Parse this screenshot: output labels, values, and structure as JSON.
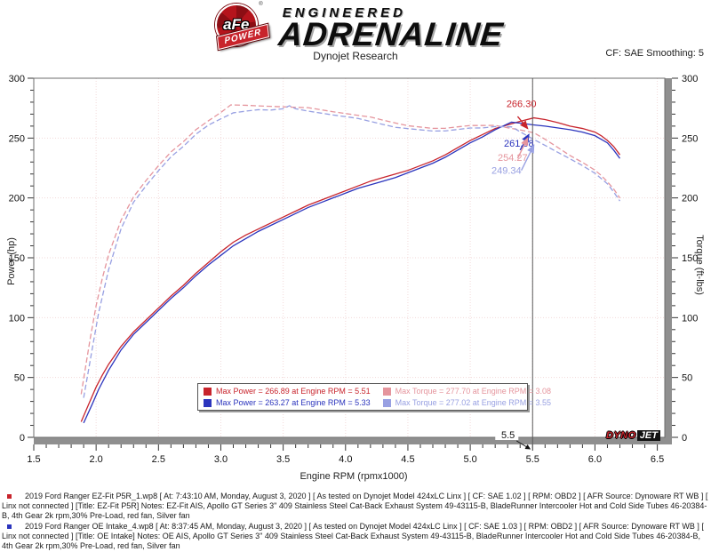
{
  "header": {
    "brand": {
      "afe": "aFe",
      "reg": "®",
      "power": "POWER",
      "line1": "ENGINEERED",
      "line2": "ADRENALINE"
    },
    "title": "Dynojet Research",
    "smoothing": "CF: SAE Smoothing: 5"
  },
  "chart_data": {
    "type": "line",
    "xlabel": "Engine RPM (rpmx1000)",
    "ylabel_left": "Power (hp)",
    "ylabel_right": "Torque (ft-lbs)",
    "xlim": [
      1.5,
      6.56
    ],
    "ylim": [
      0,
      300
    ],
    "x_major_ticks": [
      "1.5",
      "2.0",
      "2.5",
      "3.0",
      "3.5",
      "4.0",
      "4.5",
      "5.0",
      "5.5",
      "6.0",
      "6.5"
    ],
    "y_major_ticks": [
      "0",
      "50",
      "100",
      "150",
      "200",
      "250",
      "300"
    ],
    "x_minor_step": 0.1,
    "y_minor_step": 10,
    "grid": {
      "on": true,
      "color": "#f2dada",
      "style": "dotted"
    },
    "frame_color": "#8f8f8f",
    "cursor": {
      "x": 5.5,
      "label": "5.5",
      "color": "#5a5a5a"
    },
    "series": [
      {
        "id": "ezfit-power",
        "axis": "left",
        "color": "#c8242c",
        "dashed": false,
        "points": [
          [
            1.88,
            13
          ],
          [
            1.95,
            30
          ],
          [
            2.0,
            42
          ],
          [
            2.05,
            52
          ],
          [
            2.1,
            61
          ],
          [
            2.2,
            76
          ],
          [
            2.3,
            88
          ],
          [
            2.4,
            98
          ],
          [
            2.5,
            108
          ],
          [
            2.6,
            118
          ],
          [
            2.7,
            127
          ],
          [
            2.8,
            137
          ],
          [
            2.9,
            146
          ],
          [
            3.0,
            155
          ],
          [
            3.1,
            163
          ],
          [
            3.2,
            169
          ],
          [
            3.3,
            174
          ],
          [
            3.4,
            179
          ],
          [
            3.5,
            184
          ],
          [
            3.6,
            189
          ],
          [
            3.7,
            194
          ],
          [
            3.8,
            198
          ],
          [
            3.9,
            202
          ],
          [
            4.0,
            206
          ],
          [
            4.1,
            210
          ],
          [
            4.2,
            214
          ],
          [
            4.3,
            217
          ],
          [
            4.4,
            220
          ],
          [
            4.5,
            223
          ],
          [
            4.6,
            227
          ],
          [
            4.7,
            231
          ],
          [
            4.8,
            236
          ],
          [
            4.9,
            242
          ],
          [
            5.0,
            248
          ],
          [
            5.1,
            253
          ],
          [
            5.2,
            258
          ],
          [
            5.3,
            261
          ],
          [
            5.4,
            264
          ],
          [
            5.51,
            266.89
          ],
          [
            5.6,
            265.5
          ],
          [
            5.7,
            263
          ],
          [
            5.8,
            260
          ],
          [
            5.9,
            258
          ],
          [
            6.0,
            255
          ],
          [
            6.05,
            252
          ],
          [
            6.1,
            248
          ],
          [
            6.15,
            243
          ],
          [
            6.2,
            236
          ]
        ]
      },
      {
        "id": "oe-power",
        "axis": "left",
        "color": "#2b34bd",
        "dashed": false,
        "points": [
          [
            1.9,
            12
          ],
          [
            1.97,
            28
          ],
          [
            2.02,
            40
          ],
          [
            2.1,
            56
          ],
          [
            2.2,
            73
          ],
          [
            2.3,
            86
          ],
          [
            2.4,
            96
          ],
          [
            2.5,
            106
          ],
          [
            2.6,
            116
          ],
          [
            2.7,
            125
          ],
          [
            2.8,
            135
          ],
          [
            2.9,
            144
          ],
          [
            3.0,
            152
          ],
          [
            3.1,
            160
          ],
          [
            3.2,
            166
          ],
          [
            3.3,
            172
          ],
          [
            3.4,
            177
          ],
          [
            3.5,
            182
          ],
          [
            3.6,
            187
          ],
          [
            3.7,
            192
          ],
          [
            3.8,
            196
          ],
          [
            3.9,
            200
          ],
          [
            4.0,
            204
          ],
          [
            4.1,
            208
          ],
          [
            4.2,
            211
          ],
          [
            4.3,
            214
          ],
          [
            4.4,
            217
          ],
          [
            4.5,
            221
          ],
          [
            4.6,
            225
          ],
          [
            4.7,
            229
          ],
          [
            4.8,
            234
          ],
          [
            4.9,
            240
          ],
          [
            5.0,
            246
          ],
          [
            5.1,
            251
          ],
          [
            5.2,
            257
          ],
          [
            5.33,
            263.27
          ],
          [
            5.4,
            262.5
          ],
          [
            5.5,
            261.08
          ],
          [
            5.6,
            260
          ],
          [
            5.7,
            258.5
          ],
          [
            5.8,
            257
          ],
          [
            5.9,
            255
          ],
          [
            6.0,
            252
          ],
          [
            6.1,
            246
          ],
          [
            6.15,
            240
          ],
          [
            6.2,
            233
          ]
        ]
      },
      {
        "id": "ezfit-torque",
        "axis": "right",
        "color": "#e5959d",
        "dashed": true,
        "points": [
          [
            1.88,
            36
          ],
          [
            1.95,
            81
          ],
          [
            2.0,
            110
          ],
          [
            2.05,
            133
          ],
          [
            2.1,
            152.6
          ],
          [
            2.2,
            181.4
          ],
          [
            2.3,
            200.9
          ],
          [
            2.4,
            214.5
          ],
          [
            2.5,
            226.9
          ],
          [
            2.6,
            238.4
          ],
          [
            2.7,
            247
          ],
          [
            2.8,
            257
          ],
          [
            2.9,
            264.4
          ],
          [
            3.0,
            271.4
          ],
          [
            3.08,
            277.7
          ],
          [
            3.2,
            277.4
          ],
          [
            3.3,
            276.9
          ],
          [
            3.4,
            276.5
          ],
          [
            3.5,
            276.1
          ],
          [
            3.6,
            275.7
          ],
          [
            3.7,
            275.4
          ],
          [
            3.8,
            273.7
          ],
          [
            3.9,
            272
          ],
          [
            4.0,
            270.5
          ],
          [
            4.1,
            269
          ],
          [
            4.2,
            267.6
          ],
          [
            4.3,
            265
          ],
          [
            4.4,
            262.6
          ],
          [
            4.5,
            260.3
          ],
          [
            4.6,
            259.2
          ],
          [
            4.7,
            258.1
          ],
          [
            4.8,
            258.2
          ],
          [
            4.9,
            259.4
          ],
          [
            5.0,
            260.5
          ],
          [
            5.1,
            260.5
          ],
          [
            5.2,
            260.6
          ],
          [
            5.3,
            258.6
          ],
          [
            5.4,
            256.8
          ],
          [
            5.51,
            254.4
          ],
          [
            5.6,
            249
          ],
          [
            5.7,
            242.3
          ],
          [
            5.8,
            235.4
          ],
          [
            5.9,
            229.7
          ],
          [
            6.0,
            223.2
          ],
          [
            6.05,
            218.8
          ],
          [
            6.1,
            213.5
          ],
          [
            6.15,
            207.5
          ],
          [
            6.2,
            199.9
          ]
        ]
      },
      {
        "id": "oe-torque",
        "axis": "right",
        "color": "#98a0e2",
        "dashed": true,
        "points": [
          [
            1.9,
            33
          ],
          [
            1.97,
            74.6
          ],
          [
            2.02,
            104
          ],
          [
            2.1,
            140
          ],
          [
            2.2,
            174.3
          ],
          [
            2.3,
            196.4
          ],
          [
            2.4,
            210.1
          ],
          [
            2.5,
            222.7
          ],
          [
            2.6,
            234.3
          ],
          [
            2.7,
            243.1
          ],
          [
            2.8,
            253.2
          ],
          [
            2.9,
            260.8
          ],
          [
            3.0,
            266.1
          ],
          [
            3.1,
            271.1
          ],
          [
            3.2,
            272.5
          ],
          [
            3.3,
            273.7
          ],
          [
            3.4,
            273.4
          ],
          [
            3.5,
            274.5
          ],
          [
            3.55,
            277.02
          ],
          [
            3.6,
            274.5
          ],
          [
            3.7,
            272.5
          ],
          [
            3.8,
            270.9
          ],
          [
            3.9,
            269.3
          ],
          [
            4.0,
            267.9
          ],
          [
            4.1,
            266.4
          ],
          [
            4.2,
            263.9
          ],
          [
            4.3,
            261.4
          ],
          [
            4.4,
            259
          ],
          [
            4.5,
            257.9
          ],
          [
            4.6,
            256.9
          ],
          [
            4.7,
            255.9
          ],
          [
            4.8,
            256
          ],
          [
            4.9,
            257.2
          ],
          [
            5.0,
            258.4
          ],
          [
            5.1,
            258.5
          ],
          [
            5.2,
            259.6
          ],
          [
            5.33,
            259.4
          ],
          [
            5.4,
            255.3
          ],
          [
            5.5,
            249.34
          ],
          [
            5.6,
            243.9
          ],
          [
            5.7,
            238.2
          ],
          [
            5.8,
            232.7
          ],
          [
            5.9,
            227
          ],
          [
            6.0,
            220.6
          ],
          [
            6.1,
            211.8
          ],
          [
            6.15,
            205
          ],
          [
            6.2,
            197.4
          ]
        ]
      }
    ],
    "annotations": [
      {
        "text": "266.30",
        "color": "#c8242c",
        "x": 5.53,
        "y": 276,
        "arrow": [
          [
            5.38,
            268
          ],
          [
            5.46,
            258
          ]
        ]
      },
      {
        "text": "261.08",
        "color": "#2b34bd",
        "x": 5.51,
        "y": 243,
        "arrow": [
          [
            5.4,
            240
          ],
          [
            5.47,
            253
          ]
        ]
      },
      {
        "text": "254.27",
        "color": "#e5959d",
        "x": 5.46,
        "y": 231,
        "arrow": [
          [
            5.38,
            233
          ],
          [
            5.46,
            250
          ]
        ]
      },
      {
        "text": "249.34",
        "color": "#98a0e2",
        "x": 5.41,
        "y": 220,
        "arrow": [
          [
            5.41,
            223
          ],
          [
            5.51,
            244
          ]
        ]
      }
    ],
    "legend": {
      "entries": [
        {
          "color": "#c8242c",
          "text": "Max Power = 266.89 at Engine RPM = 5.51"
        },
        {
          "color": "#e5959d",
          "text": "Max Torque = 277.70 at Engine RPM = 3.08"
        },
        {
          "color": "#2b34bd",
          "text": "Max Power = 263.27 at Engine RPM = 5.33"
        },
        {
          "color": "#98a0e2",
          "text": "Max Torque = 277.02 at Engine RPM = 3.55"
        }
      ]
    },
    "watermark": {
      "dyno": "DYNO",
      "jet": "JET"
    }
  },
  "footer": {
    "notes": [
      {
        "bullet_color": "#c8242c",
        "text": "2019 Ford Ranger EZ-Fit P5R_1.wp8 [ At: 7:43:10 AM, Monday, August 3, 2020 ] [ As tested on Dynojet Model 424xLC Linx ] [ CF: SAE 1.02 ] [ RPM: OBD2 ] [ AFR Source: Dynoware RT WB ] [ Linx not connected ] [Title: EZ-Fit P5R]  Notes:  EZ-Fit AIS, Apollo GT Series 3\" 409 Stainless Steel Cat-Back Exhaust System  49-43115-B, BladeRunner Intercooler Hot and Cold Side Tubes 46-20384-B, 4th Gear 2k rpm,30% Pre-Load, red fan, Silver fan"
      },
      {
        "bullet_color": "#2b34bd",
        "text": "2019 Ford Ranger OE Intake_4.wp8 [ At: 8:37:45 AM, Monday, August 3, 2020 ] [ As tested on Dynojet Model 424xLC Linx ] [ CF: SAE 1.03 ] [ RPM: OBD2 ] [ AFR Source: Dynoware RT WB ] [ Linx not connected ] [Title: OE Intake]  Notes: OE AIS, Apollo GT Series 3\" 409 Stainless Steel Cat-Back Exhaust System  49-43115-B, BladeRunner Intercooler Hot and Cold Side Tubes 46-20384-B, 4th Gear 2k rpm,30% Pre-Load, red fan, Silver fan"
      }
    ]
  }
}
